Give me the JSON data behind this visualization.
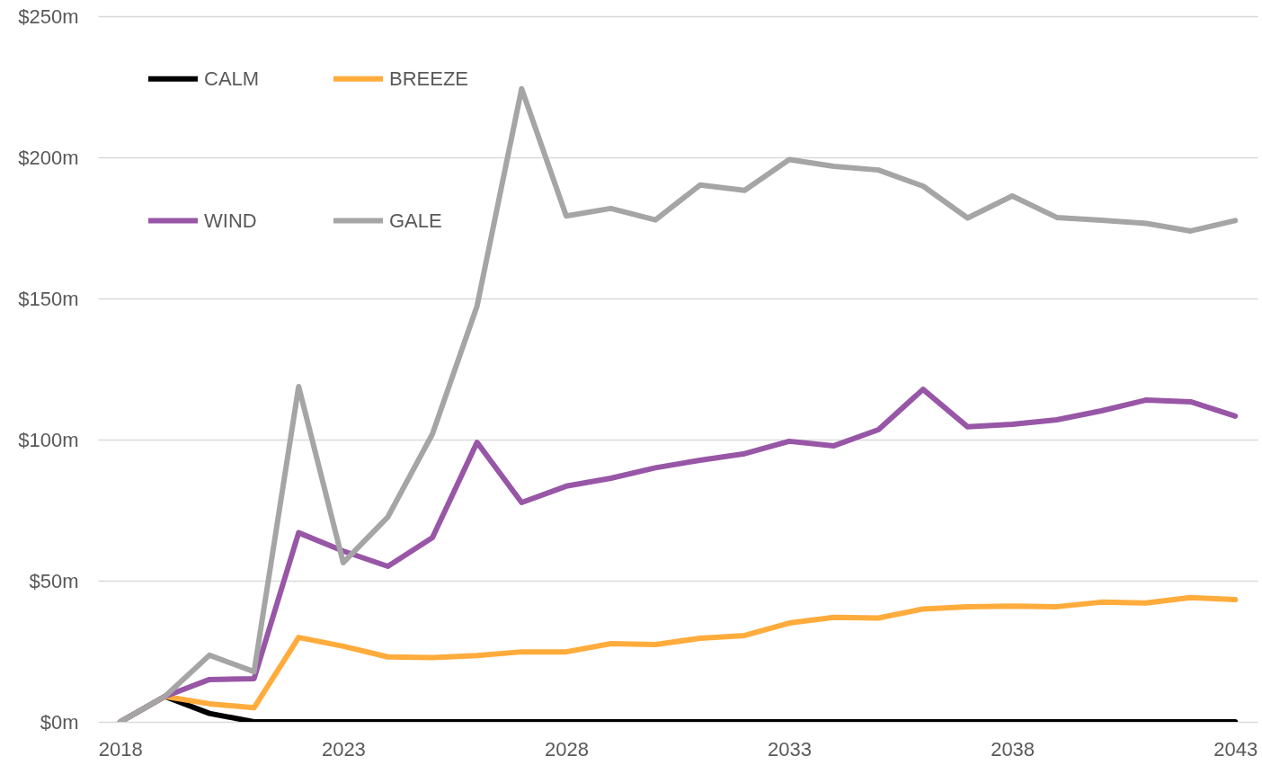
{
  "chart_data": {
    "type": "line",
    "x": [
      2018,
      2019,
      2020,
      2021,
      2022,
      2023,
      2024,
      2025,
      2026,
      2027,
      2028,
      2029,
      2030,
      2031,
      2032,
      2033,
      2034,
      2035,
      2036,
      2037,
      2038,
      2039,
      2040,
      2041,
      2042,
      2043
    ],
    "series": [
      {
        "name": "CALM",
        "color": "#000000",
        "values": [
          0,
          9,
          3,
          0,
          0,
          0,
          0,
          0,
          0,
          0,
          0,
          0,
          0,
          0,
          0,
          0,
          0,
          0,
          0,
          0,
          0,
          0,
          0,
          0,
          0,
          0
        ]
      },
      {
        "name": "BREEZE",
        "color": "#ffac3c",
        "values": [
          0,
          9,
          6.4,
          5,
          29.9,
          26.8,
          23,
          22.8,
          23.5,
          24.8,
          24.8,
          27.7,
          27.4,
          29.6,
          30.6,
          35,
          37,
          36.8,
          40,
          40.8,
          41,
          40.8,
          42.4,
          42.1,
          44,
          43.3
        ]
      },
      {
        "name": "WIND",
        "color": "#9856a6",
        "values": [
          0,
          9,
          15,
          15.3,
          67,
          60.5,
          55.1,
          65.3,
          99,
          77.7,
          83.5,
          86.3,
          90,
          92.7,
          95,
          99.4,
          97.8,
          103.5,
          117.8,
          104.5,
          105.4,
          107,
          110.2,
          114,
          113.4,
          108.3
        ]
      },
      {
        "name": "GALE",
        "color": "#a5a5a5",
        "values": [
          0,
          9,
          23.6,
          17.8,
          118.8,
          56.4,
          72.6,
          102,
          147.3,
          224.3,
          179.2,
          181.9,
          177.8,
          190.2,
          188.3,
          199.2,
          196.8,
          195.5,
          189.8,
          178.5,
          186.3,
          178.7,
          177.7,
          176.6,
          173.9,
          177.6
        ]
      }
    ],
    "xlim": [
      2017.5,
      2043.5
    ],
    "xticks": [
      2018,
      2023,
      2028,
      2033,
      2038,
      2043
    ],
    "ylim": [
      0,
      250
    ],
    "yticks": [
      {
        "value": 0,
        "label": "$0m"
      },
      {
        "value": 50,
        "label": "$50m"
      },
      {
        "value": 100,
        "label": "$100m"
      },
      {
        "value": 150,
        "label": "$150m"
      },
      {
        "value": 200,
        "label": "$200m"
      },
      {
        "value": 250,
        "label": "$250m"
      }
    ],
    "grid": "y",
    "legend": "top left"
  }
}
